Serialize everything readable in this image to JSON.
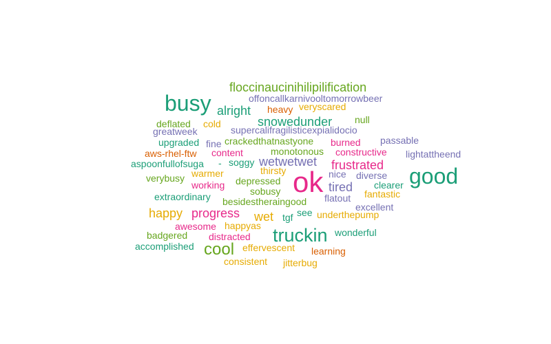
{
  "palette": {
    "teal": "#1b9e77",
    "orange": "#d95f02",
    "purple": "#7570b3",
    "magenta": "#e7298a",
    "green": "#66a61e",
    "gold": "#e6ab02"
  },
  "words": [
    {
      "text": "ok",
      "color": "magenta"
    },
    {
      "text": "busy",
      "color": "teal"
    },
    {
      "text": "good",
      "color": "teal"
    },
    {
      "text": "truckin",
      "color": "teal"
    },
    {
      "text": "cool",
      "color": "green"
    },
    {
      "text": "floccinaucinihilipilification",
      "color": "green"
    },
    {
      "text": "alright",
      "color": "teal"
    },
    {
      "text": "snowedunder",
      "color": "teal"
    },
    {
      "text": "wetwetwet",
      "color": "purple"
    },
    {
      "text": "frustrated",
      "color": "magenta"
    },
    {
      "text": "progress",
      "color": "magenta"
    },
    {
      "text": "happy",
      "color": "gold"
    },
    {
      "text": "wet",
      "color": "gold"
    },
    {
      "text": "tired",
      "color": "purple"
    },
    {
      "text": "offoncallkarnivooltomorrowbeer",
      "color": "purple"
    },
    {
      "text": "heavy",
      "color": "orange"
    },
    {
      "text": "veryscared",
      "color": "gold"
    },
    {
      "text": "null",
      "color": "green"
    },
    {
      "text": "deflated",
      "color": "green"
    },
    {
      "text": "cold",
      "color": "gold"
    },
    {
      "text": "greatweek",
      "color": "purple"
    },
    {
      "text": "supercalifragilisticexpialidocio",
      "color": "purple"
    },
    {
      "text": "upgraded",
      "color": "teal"
    },
    {
      "text": "fine",
      "color": "purple"
    },
    {
      "text": "crackedthatnastyone",
      "color": "green"
    },
    {
      "text": "burned",
      "color": "magenta"
    },
    {
      "text": "passable",
      "color": "purple"
    },
    {
      "text": "aws-rhel-ftw",
      "color": "orange"
    },
    {
      "text": "content",
      "color": "magenta"
    },
    {
      "text": "monotonous",
      "color": "green"
    },
    {
      "text": "constructive",
      "color": "magenta"
    },
    {
      "text": "lightattheend",
      "color": "purple"
    },
    {
      "text": "aspoonfullofsuga",
      "color": "teal"
    },
    {
      "text": "-",
      "color": "teal"
    },
    {
      "text": "soggy",
      "color": "teal"
    },
    {
      "text": "thirsty",
      "color": "gold"
    },
    {
      "text": "warmer",
      "color": "gold"
    },
    {
      "text": "nice",
      "color": "purple"
    },
    {
      "text": "diverse",
      "color": "purple"
    },
    {
      "text": "verybusy",
      "color": "green"
    },
    {
      "text": "depressed",
      "color": "green"
    },
    {
      "text": "working",
      "color": "magenta"
    },
    {
      "text": "clearer",
      "color": "teal"
    },
    {
      "text": "sobusy",
      "color": "green"
    },
    {
      "text": "fantastic",
      "color": "gold"
    },
    {
      "text": "extraordinary",
      "color": "teal"
    },
    {
      "text": "besidestheraingood",
      "color": "green"
    },
    {
      "text": "flatout",
      "color": "purple"
    },
    {
      "text": "excellent",
      "color": "purple"
    },
    {
      "text": "see",
      "color": "teal"
    },
    {
      "text": "tgf",
      "color": "teal"
    },
    {
      "text": "underthepump",
      "color": "gold"
    },
    {
      "text": "awesome",
      "color": "magenta"
    },
    {
      "text": "happyas",
      "color": "gold"
    },
    {
      "text": "wonderful",
      "color": "teal"
    },
    {
      "text": "badgered",
      "color": "green"
    },
    {
      "text": "distracted",
      "color": "magenta"
    },
    {
      "text": "accomplished",
      "color": "teal"
    },
    {
      "text": "effervescent",
      "color": "gold"
    },
    {
      "text": "learning",
      "color": "orange"
    },
    {
      "text": "consistent",
      "color": "gold"
    },
    {
      "text": "jitterbug",
      "color": "gold"
    }
  ]
}
